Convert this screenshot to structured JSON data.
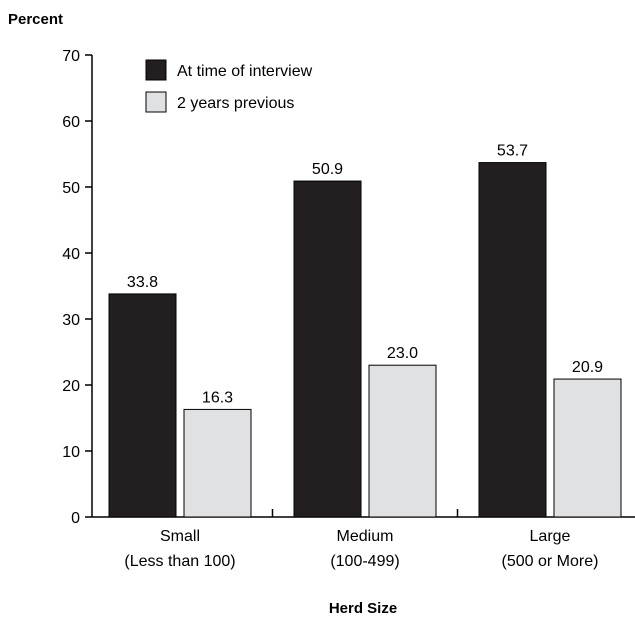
{
  "chart_data": {
    "type": "bar",
    "ylabel": "Percent",
    "xlabel": "Herd Size",
    "ylim": [
      0,
      70
    ],
    "yticks": [
      0,
      10,
      20,
      30,
      40,
      50,
      60,
      70
    ],
    "categories": [
      {
        "line1": "Small",
        "line2": "(Less than 100)"
      },
      {
        "line1": "Medium",
        "line2": "(100-499)"
      },
      {
        "line1": "Large",
        "line2": "(500 or More)"
      }
    ],
    "series": [
      {
        "name": "At time of interview",
        "values": [
          33.8,
          50.9,
          53.7
        ],
        "labels": [
          "33.8",
          "50.9",
          "53.7"
        ],
        "color": "#231f20"
      },
      {
        "name": "2 years previous",
        "values": [
          16.3,
          23.0,
          20.9
        ],
        "labels": [
          "16.3",
          "23.0",
          "20.9"
        ],
        "color": "#e0e1e3"
      }
    ],
    "legend_position": "top-left",
    "grid": false
  }
}
